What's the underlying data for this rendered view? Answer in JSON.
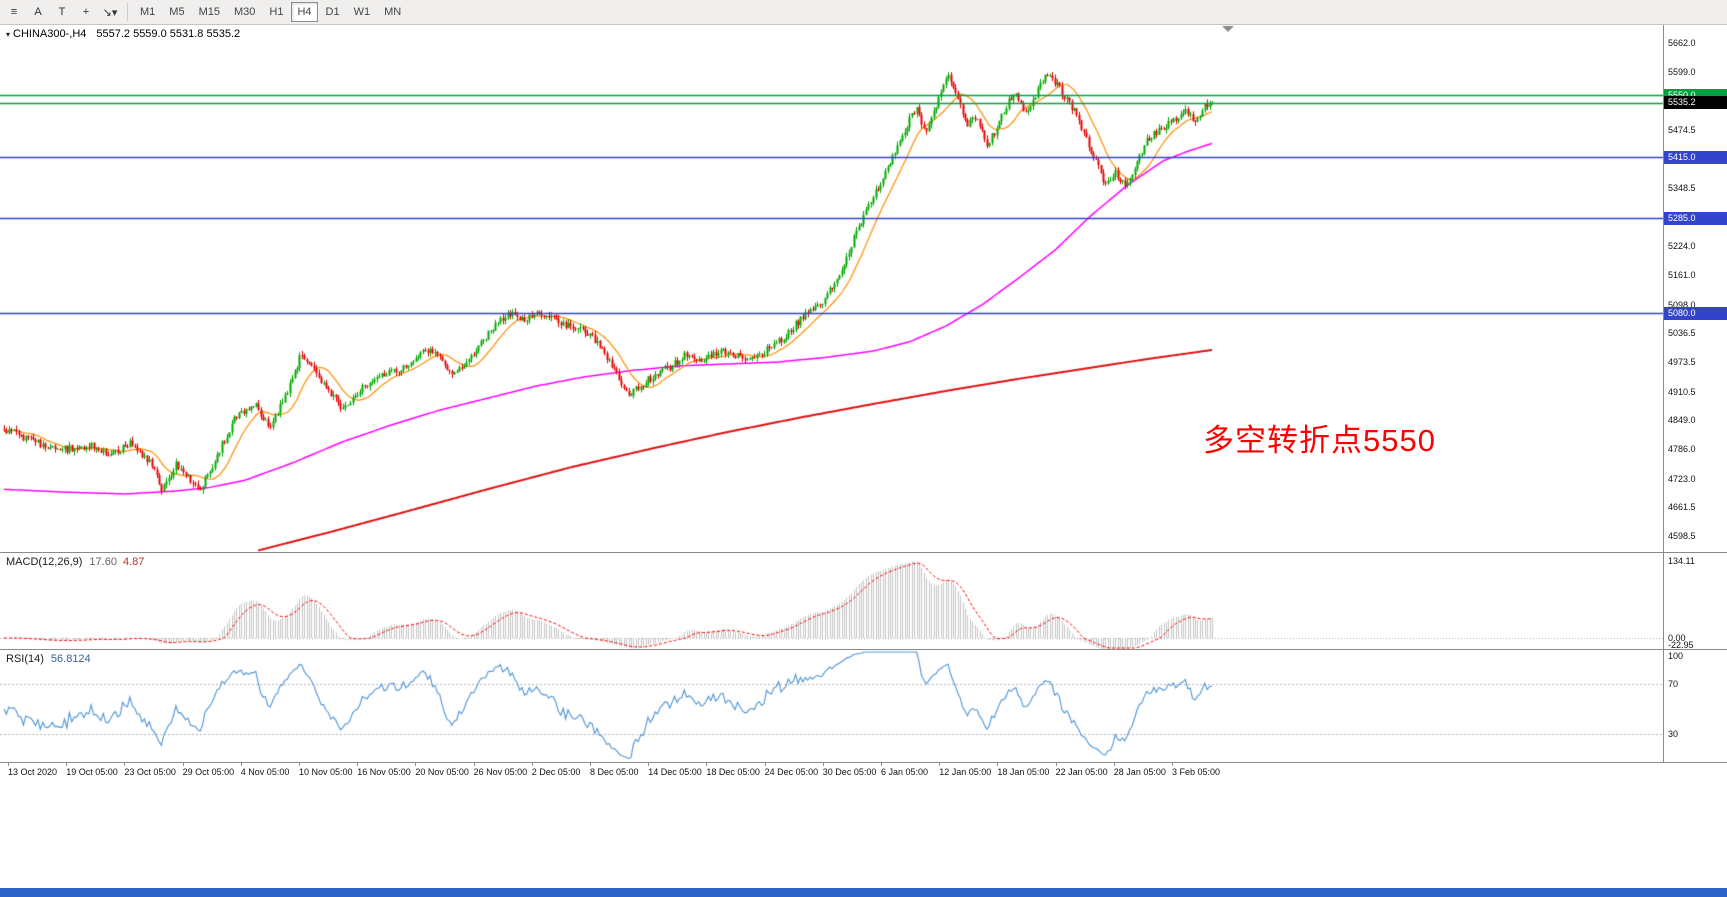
{
  "accent_colors": {
    "bull": "#00a800",
    "bear": "#e60000",
    "ma_fast": "#ff8c00",
    "ma_mid": "#ff00ff",
    "ma_slow": "#dd1111",
    "hline_green": "#00a040",
    "hline_blue": "#3344cc",
    "macd_hist": "#c4c4c4",
    "macd_signal": "#ff0000",
    "rsi_line": "#4f94d4",
    "annotation_red": "#ff0000",
    "bottom_bar_blue": "#2b63c8"
  },
  "toolbar": {
    "tools": [
      {
        "name": "chart-list-icon",
        "glyph": "≡"
      },
      {
        "name": "annotate-arrow-icon",
        "glyph": "A"
      },
      {
        "name": "text-tool-icon",
        "glyph": "T"
      },
      {
        "name": "crosshair-icon",
        "glyph": "+"
      },
      {
        "name": "line-tools-icon",
        "glyph": "↘▾"
      }
    ],
    "timeframes": [
      {
        "label": "M1",
        "active": false
      },
      {
        "label": "M5",
        "active": false
      },
      {
        "label": "M15",
        "active": false
      },
      {
        "label": "M30",
        "active": false
      },
      {
        "label": "H1",
        "active": false
      },
      {
        "label": "H4",
        "active": true
      },
      {
        "label": "D1",
        "active": false
      },
      {
        "label": "W1",
        "active": false
      },
      {
        "label": "MN",
        "active": false
      }
    ]
  },
  "main_chart": {
    "expand_icon_glyph": "▾",
    "symbol": "CHINA300-,H4",
    "ohlc": "5557.2 5559.0 5531.8 5535.2",
    "annotation": "多空转折点5550",
    "price_axis_labels": [
      "5662.0",
      "5599.0",
      "5474.5",
      "5348.5",
      "5224.0",
      "5161.0",
      "5098.0",
      "5036.5",
      "4973.5",
      "4910.5",
      "4849.0",
      "4786.0",
      "4723.0",
      "4661.5",
      "4598.5"
    ],
    "price_badges": [
      {
        "value": "5550.0",
        "price": 5550.0,
        "type": "green"
      },
      {
        "value": "5535.2",
        "price": 5535.2,
        "type": "black"
      },
      {
        "value": "5415.0",
        "price": 5415.0,
        "type": "blue"
      },
      {
        "value": "5285.0",
        "price": 5285.0,
        "type": "blue"
      },
      {
        "value": "5080.0",
        "price": 5080.0,
        "type": "blue"
      }
    ],
    "hlines": [
      {
        "price": 5550.0,
        "color": "green"
      },
      {
        "price": 5533.0,
        "color": "green"
      },
      {
        "price": 5415.0,
        "color": "blue"
      },
      {
        "price": 5285.0,
        "color": "blue"
      },
      {
        "price": 5080.0,
        "color": "blue"
      }
    ]
  },
  "macd_panel": {
    "label": "MACD(12,26,9)",
    "value": "17.60",
    "signal_value": "4.87",
    "axis_labels": [
      {
        "text": "134.11",
        "value": 134.11
      },
      {
        "text": "0.00",
        "value": 0
      },
      {
        "text": "-22.95",
        "value": -22.95
      }
    ]
  },
  "rsi_panel": {
    "label": "RSI(14)",
    "value": "56.8124",
    "axis_labels": [
      {
        "text": "100",
        "value": 100
      },
      {
        "text": "70",
        "value": 70
      },
      {
        "text": "30",
        "value": 30
      }
    ],
    "levels": [
      70,
      30
    ]
  },
  "time_axis": [
    "13 Oct 2020",
    "19 Oct 05:00",
    "23 Oct 05:00",
    "29 Oct 05:00",
    "4 Nov 05:00",
    "10 Nov 05:00",
    "16 Nov 05:00",
    "20 Nov 05:00",
    "26 Nov 05:00",
    "2 Dec 05:00",
    "8 Dec 05:00",
    "14 Dec 05:00",
    "18 Dec 05:00",
    "24 Dec 05:00",
    "30 Dec 05:00",
    "6 Jan 05:00",
    "12 Jan 05:00",
    "18 Jan 05:00",
    "22 Jan 05:00",
    "28 Jan 05:00",
    "3 Feb 05:00"
  ],
  "chart_data": {
    "type": "candlestick",
    "symbol": "CHINA300-",
    "timeframe": "H4",
    "title": "CHINA300-,H4",
    "visible_range": {
      "start": "13 Oct 2020",
      "end": "5 Feb 2021"
    },
    "price_axis_range": [
      4565,
      5700
    ],
    "bar_count": 500,
    "last_ohlc": {
      "open": 5557.2,
      "high": 5559.0,
      "low": 5531.8,
      "close": 5535.2
    },
    "horizontal_levels": [
      5550.0,
      5533.0,
      5415.0,
      5285.0,
      5080.0
    ],
    "annotation": {
      "text": "多空转折点5550",
      "color": "#ff0000"
    },
    "price_path": [
      [
        0,
        4830
      ],
      [
        0.022,
        4805
      ],
      [
        0.046,
        4785
      ],
      [
        0.071,
        4795
      ],
      [
        0.088,
        4775
      ],
      [
        0.104,
        4800
      ],
      [
        0.121,
        4755
      ],
      [
        0.131,
        4695
      ],
      [
        0.142,
        4755
      ],
      [
        0.154,
        4720
      ],
      [
        0.162,
        4695
      ],
      [
        0.175,
        4765
      ],
      [
        0.191,
        4855
      ],
      [
        0.208,
        4880
      ],
      [
        0.22,
        4835
      ],
      [
        0.233,
        4905
      ],
      [
        0.245,
        4985
      ],
      [
        0.255,
        4960
      ],
      [
        0.27,
        4905
      ],
      [
        0.28,
        4875
      ],
      [
        0.295,
        4915
      ],
      [
        0.311,
        4940
      ],
      [
        0.328,
        4960
      ],
      [
        0.344,
        4990
      ],
      [
        0.357,
        5000
      ],
      [
        0.369,
        4950
      ],
      [
        0.382,
        4965
      ],
      [
        0.394,
        5010
      ],
      [
        0.407,
        5055
      ],
      [
        0.419,
        5080
      ],
      [
        0.431,
        5065
      ],
      [
        0.444,
        5080
      ],
      [
        0.459,
        5060
      ],
      [
        0.473,
        5048
      ],
      [
        0.485,
        5035
      ],
      [
        0.497,
        4995
      ],
      [
        0.508,
        4945
      ],
      [
        0.517,
        4900
      ],
      [
        0.528,
        4925
      ],
      [
        0.54,
        4950
      ],
      [
        0.551,
        4962
      ],
      [
        0.564,
        4990
      ],
      [
        0.576,
        4972
      ],
      [
        0.589,
        4995
      ],
      [
        0.599,
        4995
      ],
      [
        0.611,
        4982
      ],
      [
        0.623,
        4985
      ],
      [
        0.634,
        5005
      ],
      [
        0.646,
        5030
      ],
      [
        0.657,
        5060
      ],
      [
        0.669,
        5085
      ],
      [
        0.679,
        5110
      ],
      [
        0.689,
        5150
      ],
      [
        0.7,
        5220
      ],
      [
        0.712,
        5290
      ],
      [
        0.724,
        5355
      ],
      [
        0.735,
        5410
      ],
      [
        0.747,
        5485
      ],
      [
        0.755,
        5520
      ],
      [
        0.763,
        5470
      ],
      [
        0.772,
        5530
      ],
      [
        0.78,
        5595
      ],
      [
        0.788,
        5560
      ],
      [
        0.796,
        5485
      ],
      [
        0.805,
        5505
      ],
      [
        0.813,
        5445
      ],
      [
        0.821,
        5470
      ],
      [
        0.83,
        5530
      ],
      [
        0.838,
        5555
      ],
      [
        0.846,
        5505
      ],
      [
        0.854,
        5550
      ],
      [
        0.863,
        5595
      ],
      [
        0.871,
        5575
      ],
      [
        0.879,
        5540
      ],
      [
        0.888,
        5505
      ],
      [
        0.896,
        5455
      ],
      [
        0.904,
        5405
      ],
      [
        0.912,
        5355
      ],
      [
        0.92,
        5380
      ],
      [
        0.929,
        5350
      ],
      [
        0.937,
        5400
      ],
      [
        0.945,
        5450
      ],
      [
        0.954,
        5470
      ],
      [
        0.962,
        5482
      ],
      [
        0.97,
        5500
      ],
      [
        0.978,
        5520
      ],
      [
        0.986,
        5492
      ],
      [
        0.994,
        5528
      ],
      [
        1,
        5535
      ]
    ],
    "ma_mid_path": [
      [
        0,
        4700
      ],
      [
        0.05,
        4694
      ],
      [
        0.1,
        4690
      ],
      [
        0.14,
        4696
      ],
      [
        0.17,
        4704
      ],
      [
        0.2,
        4720
      ],
      [
        0.24,
        4758
      ],
      [
        0.28,
        4802
      ],
      [
        0.32,
        4838
      ],
      [
        0.36,
        4870
      ],
      [
        0.4,
        4896
      ],
      [
        0.44,
        4922
      ],
      [
        0.48,
        4942
      ],
      [
        0.52,
        4956
      ],
      [
        0.56,
        4966
      ],
      [
        0.6,
        4970
      ],
      [
        0.64,
        4974
      ],
      [
        0.68,
        4984
      ],
      [
        0.72,
        4998
      ],
      [
        0.75,
        5018
      ],
      [
        0.78,
        5052
      ],
      [
        0.81,
        5098
      ],
      [
        0.84,
        5155
      ],
      [
        0.87,
        5215
      ],
      [
        0.9,
        5290
      ],
      [
        0.93,
        5355
      ],
      [
        0.96,
        5408
      ],
      [
        0.98,
        5428
      ],
      [
        1,
        5445
      ]
    ],
    "ma_slow_path": [
      [
        0.21,
        4568
      ],
      [
        0.27,
        4608
      ],
      [
        0.33,
        4650
      ],
      [
        0.4,
        4700
      ],
      [
        0.47,
        4748
      ],
      [
        0.54,
        4790
      ],
      [
        0.6,
        4824
      ],
      [
        0.66,
        4855
      ],
      [
        0.72,
        4884
      ],
      [
        0.78,
        4912
      ],
      [
        0.84,
        4938
      ],
      [
        0.9,
        4962
      ],
      [
        0.95,
        4982
      ],
      [
        1,
        5000
      ]
    ],
    "indicators": [
      {
        "name": "MACD",
        "params": [
          12,
          26,
          9
        ],
        "current": [
          17.6,
          4.87
        ],
        "axis_max": 134.11,
        "axis_min": -22.95
      },
      {
        "name": "RSI",
        "params": [
          14
        ],
        "current": 56.8124,
        "levels": [
          70,
          30
        ],
        "axis_max": 100
      }
    ]
  }
}
